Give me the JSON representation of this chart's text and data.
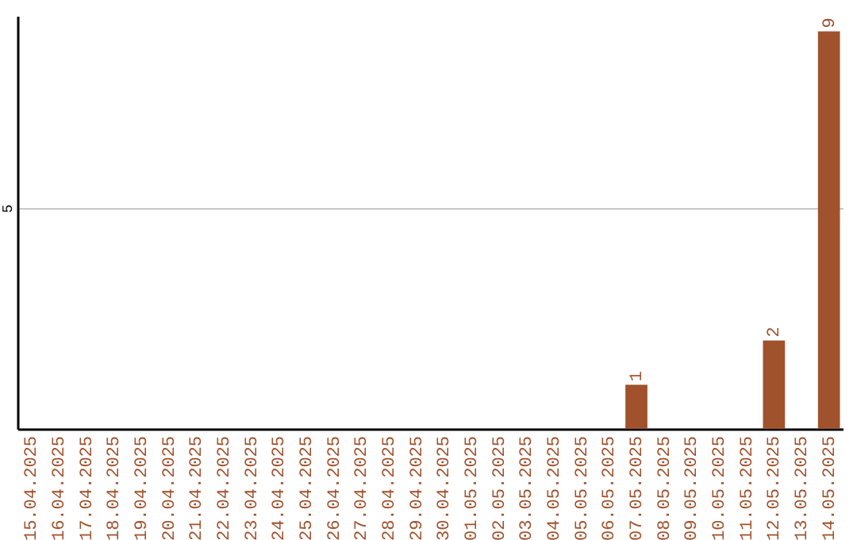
{
  "chart_data": {
    "type": "bar",
    "categories": [
      "15.04.2025",
      "16.04.2025",
      "17.04.2025",
      "18.04.2025",
      "19.04.2025",
      "20.04.2025",
      "21.04.2025",
      "22.04.2025",
      "23.04.2025",
      "24.04.2025",
      "25.04.2025",
      "26.04.2025",
      "27.04.2025",
      "28.04.2025",
      "29.04.2025",
      "30.04.2025",
      "01.05.2025",
      "02.05.2025",
      "03.05.2025",
      "04.05.2025",
      "05.05.2025",
      "06.05.2025",
      "07.05.2025",
      "08.05.2025",
      "09.05.2025",
      "10.05.2025",
      "11.05.2025",
      "12.05.2025",
      "13.05.2025",
      "14.05.2025"
    ],
    "values": [
      null,
      null,
      null,
      null,
      null,
      null,
      null,
      null,
      null,
      null,
      null,
      null,
      null,
      null,
      null,
      null,
      null,
      null,
      null,
      null,
      null,
      null,
      1,
      null,
      null,
      null,
      null,
      2,
      null,
      9
    ],
    "data_labels": true,
    "color": "#a0522d",
    "ylim": [
      0,
      9.35
    ],
    "yticks": [
      5
    ],
    "grid": "y"
  }
}
